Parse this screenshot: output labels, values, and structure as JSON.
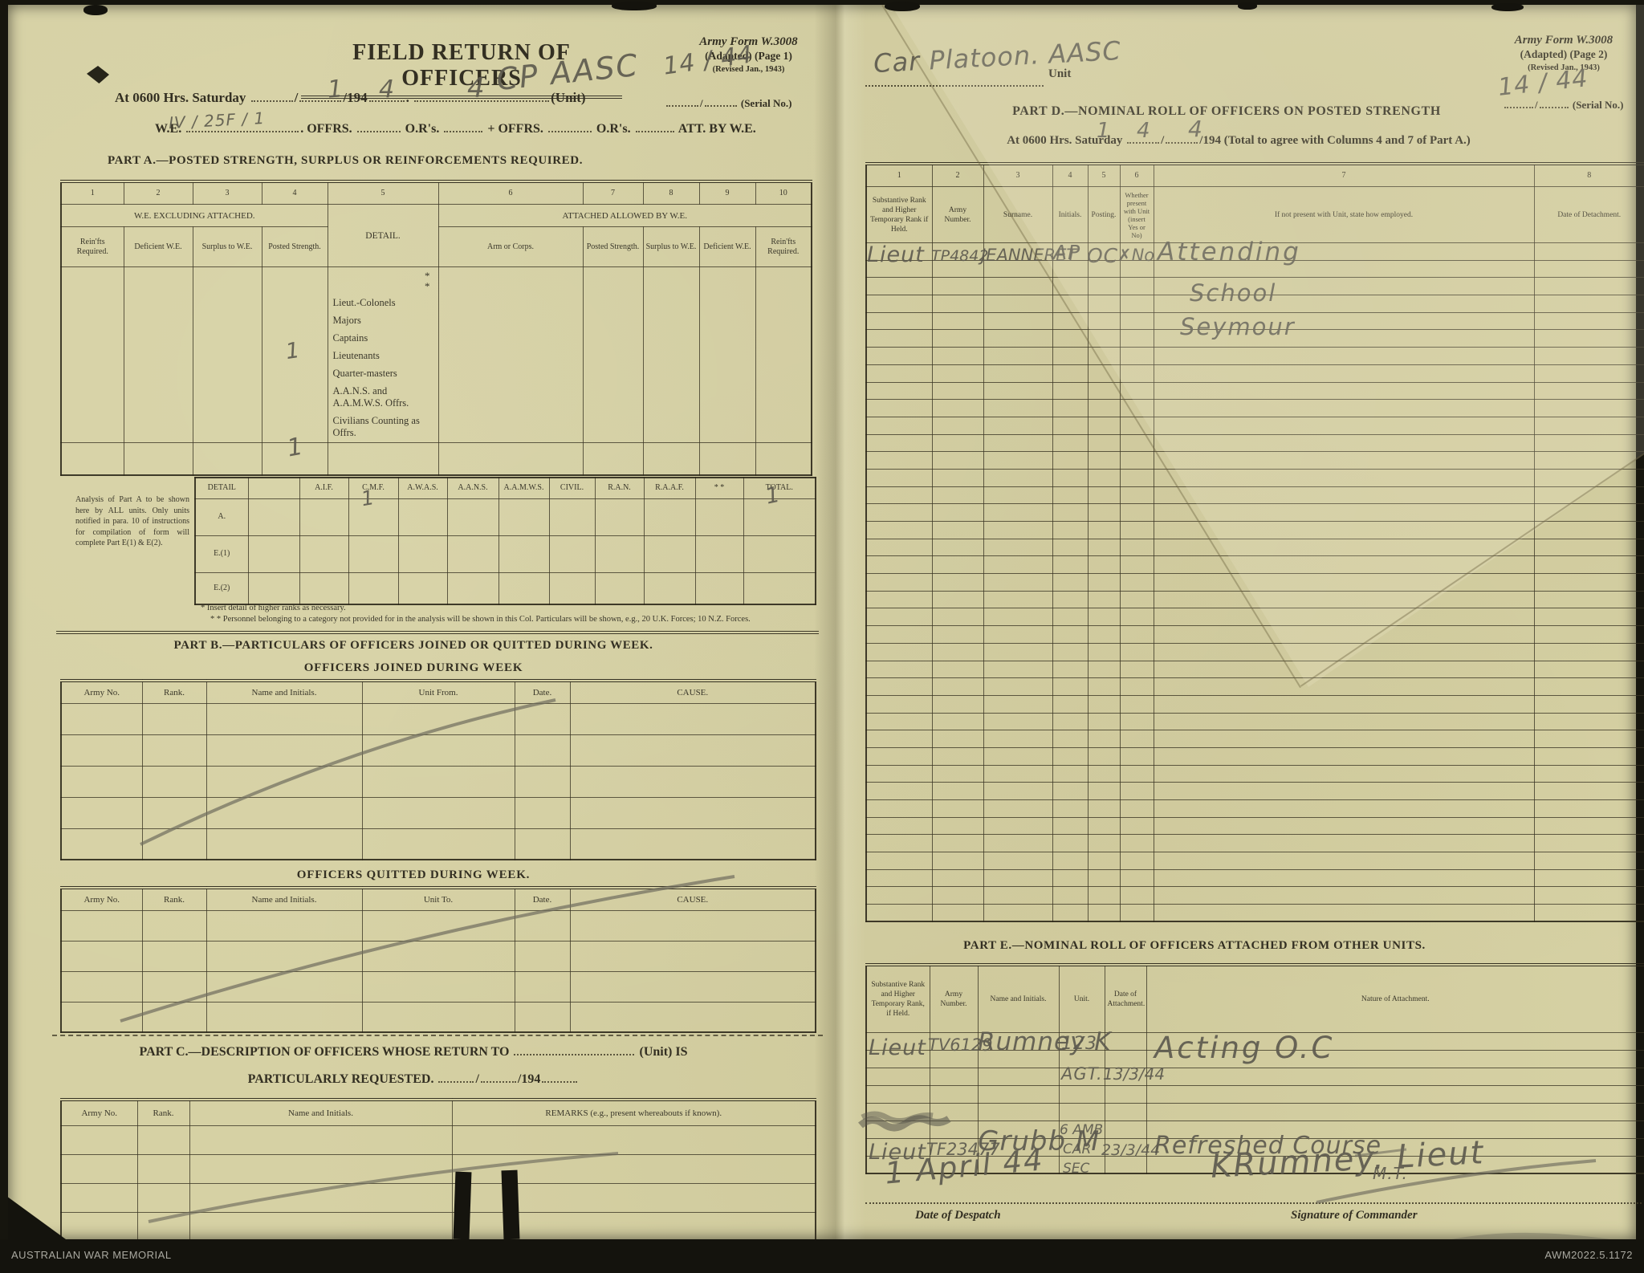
{
  "footer": {
    "left": "AUSTRALIAN WAR MEMORIAL",
    "right": "AWM2022.5.1172"
  },
  "page1": {
    "title": "FIELD RETURN OF OFFICERS",
    "form_ref": {
      "l1": "Army Form W.3008",
      "l2": "(Adapted)  (Page 1)",
      "l3": "(Revised Jan., 1943)",
      "serial_label": "(Serial No.)"
    },
    "at_line": {
      "pre": "At 0600 Hrs. Saturday",
      "slash": "/",
      "y194": "/194",
      "dot": ".",
      "unit": "(Unit)"
    },
    "we_line": {
      "we": "W.E.",
      "dot": ".",
      "offrs": "OFFRS.",
      "ors": "O.R's.",
      "plus": "+",
      "offrs2": "OFFRS.",
      "ors2": "O.R's.",
      "att": "ATT. BY W.E."
    },
    "partA": {
      "heading": "PART A.—POSTED STRENGTH, SURPLUS OR REINFORCEMENTS REQUIRED.",
      "col_numbers": [
        "1",
        "2",
        "3",
        "4",
        "5",
        "6",
        "7",
        "8",
        "9",
        "10"
      ],
      "group_left": "W.E. EXCLUDING ATTACHED.",
      "detail": "DETAIL.",
      "group_right": "ATTACHED ALLOWED BY W.E.",
      "sub": [
        "Rein'fts Required.",
        "Deficient W.E.",
        "Surplus to W.E.",
        "Posted Strength.",
        "Arm or Corps.",
        "Posted Strength.",
        "Surplus to W.E.",
        "Deficient W.E.",
        "Rein'fts Required."
      ],
      "star": "*",
      "ranks": [
        "Lieut.-Colonels",
        "Majors",
        "Captains",
        "Lieutenants",
        "Quarter-masters",
        "A.A.N.S. and A.A.M.W.S. Offrs.",
        "Civilians Counting as Offrs."
      ]
    },
    "analysis": {
      "note": "Analysis of Part A to be shown here by ALL units. Only units notified in para. 10 of instructions for compilation of form will complete Part E(1) & E(2).",
      "detail_h": "DETAIL",
      "cols": [
        "A.I.F.",
        "C.M.F.",
        "A.W.A.S.",
        "A.A.N.S.",
        "A.A.M.W.S.",
        "CIVIL.",
        "R.A.N.",
        "R.A.A.F.",
        "* *",
        "TOTAL."
      ],
      "rows": [
        "A.",
        "E.(1)",
        "E.(2)"
      ]
    },
    "footnotes": {
      "f1": "* Insert detail of higher ranks as necessary.",
      "f2": "* * Personnel belonging to a category not provided for in the analysis will be shown in this Col.  Particulars will be shown, e.g., 20 U.K. Forces; 10 N.Z. Forces."
    },
    "partB": {
      "heading": "PART B.—PARTICULARS OF OFFICERS JOINED OR QUITTED DURING WEEK.",
      "joined_title": "OFFICERS JOINED DURING WEEK",
      "quitted_title": "OFFICERS QUITTED DURING WEEK.",
      "joined_cols": [
        "Army No.",
        "Rank.",
        "Name and Initials.",
        "Unit From.",
        "Date.",
        "CAUSE."
      ],
      "quitted_cols": [
        "Army No.",
        "Rank.",
        "Name and Initials.",
        "Unit To.",
        "Date.",
        "CAUSE."
      ]
    },
    "partC": {
      "heading1": "PART C.—DESCRIPTION OF OFFICERS WHOSE RETURN TO",
      "unit_is": "(Unit) IS",
      "heading2": "PARTICULARLY REQUESTED.",
      "slash": "/",
      "y194": "/194",
      "cols": [
        "Army No.",
        "Rank.",
        "Name and Initials.",
        "REMARKS (e.g., present whereabouts if known)."
      ]
    }
  },
  "page2": {
    "form_ref": {
      "l1": "Army Form W.3008",
      "l2": "(Adapted)  (Page 2)",
      "l3": "(Revised Jan., 1943)",
      "serial_label": "(Serial No.)"
    },
    "unit_label": "Unit",
    "partD": {
      "heading": "PART D.—NOMINAL ROLL OF OFFICERS ON POSTED STRENGTH",
      "sub_pre": "At 0600 Hrs. Saturday",
      "slash": "/",
      "y194": "/194",
      "sub_post": "(Total to agree with Columns 4 and 7 of Part A.)",
      "col_numbers": [
        "1",
        "2",
        "3",
        "4",
        "5",
        "6",
        "7",
        "8"
      ],
      "cols": [
        "Substantive Rank and Higher Temporary Rank if Held.",
        "Army Number.",
        "Surname.",
        "Initials.",
        "Posting.",
        "Whether present with Unit (insert Yes or No)",
        "If not present with Unit, state how employed.",
        "Date of Detachment."
      ]
    },
    "partE": {
      "heading": "PART E.—NOMINAL ROLL OF OFFICERS ATTACHED FROM OTHER UNITS.",
      "cols": [
        "Substantive Rank and Higher Temporary Rank, if Held.",
        "Army Number.",
        "Name and Initials.",
        "Unit.",
        "Date of Attachment.",
        "Nature of Attachment."
      ]
    },
    "despatch_label": "Date of Despatch",
    "signature_label": "Signature of Commander"
  },
  "hand": {
    "p1_serial": "14 / 44",
    "p1_date_d": "1",
    "p1_date_m": "4",
    "p1_date_y": "4",
    "p1_unit": "CP AASC",
    "p1_we": "IV / 25F / 1",
    "p1_posted_lieut": "1",
    "p1_posted_total": "1",
    "p1_analysis_cmf": "1",
    "p1_analysis_total": "1",
    "p2_unit": "Car Platoon. AASC",
    "p2_serial": "14 / 44",
    "p2_date_d": "1",
    "p2_date_m": "4",
    "p2_date_y": "4",
    "d_rank": "Lieut",
    "d_number": "TP4842",
    "d_surname": "JEANNERET",
    "d_initials": "AP",
    "d_posting": "OC",
    "d_present": "✗No",
    "d_employed1": "Attending",
    "d_employed2": "School",
    "d_employed3": "Seymour",
    "e1_rank": "Lieut",
    "e1_number": "TV6129",
    "e1_name": "Rumney K",
    "e1_unit1": "123",
    "e1_unit2": "AGT.",
    "e1_date": "13/3/44",
    "e1_nature": "Acting O.C",
    "e2_rank": "Lieut",
    "e2_number": "TF23477",
    "e2_name": "Grubb M",
    "e2_unit1": "6 AMB",
    "e2_unit2": "CAR",
    "e2_unit3": "SEC",
    "e2_date": "23/3/44",
    "e2_nature": "Refreshed Course",
    "e2_nature2": "M.T.",
    "despatch": "1 April 44",
    "signature": "KRumney. Lieut"
  }
}
